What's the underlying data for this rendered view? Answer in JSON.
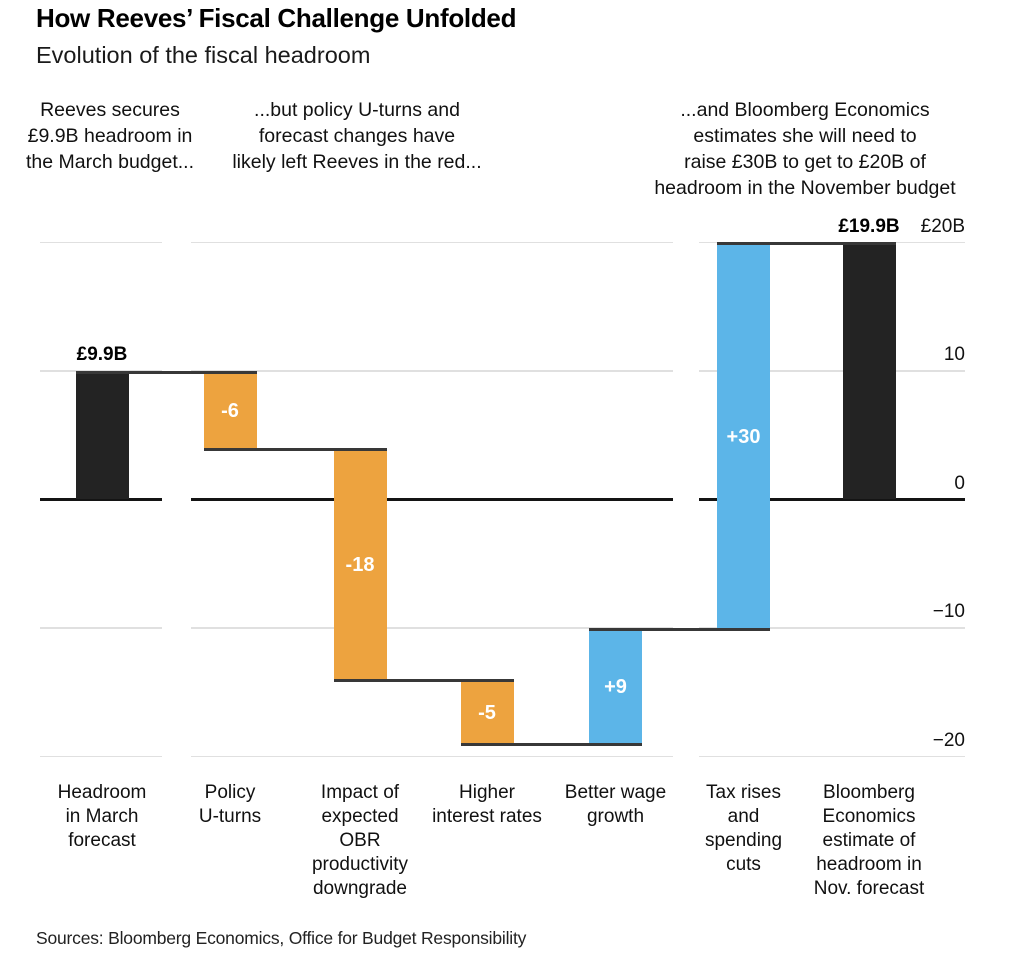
{
  "header": {
    "title": "How Reeves’ Fiscal Challenge Unfolded",
    "subtitle": "Evolution of the fiscal headroom"
  },
  "annotations": [
    {
      "text": "Reeves secures\n£9.9B headroom in\nthe March budget..."
    },
    {
      "text": "...but policy U-turns and\nforecast changes have\nlikely left Reeves in the red..."
    },
    {
      "text": "...and Bloomberg Economics\nestimates she will need to\nraise £30B to get to £20B of\nheadroom in the November budget"
    }
  ],
  "chart_data": {
    "type": "bar",
    "subtype": "waterfall",
    "title": "How Reeves’ Fiscal Challenge Unfolded",
    "subtitle": "Evolution of the fiscal headroom",
    "unit": "£B",
    "ylim": [
      -20,
      20
    ],
    "grid": "horizontal",
    "legend": "none",
    "yticks": [
      {
        "value": 20,
        "label": "£20B"
      },
      {
        "value": 10,
        "label": "10"
      },
      {
        "value": 0,
        "label": "0"
      },
      {
        "value": -10,
        "label": "−10"
      },
      {
        "value": -20,
        "label": "−20"
      }
    ],
    "bars": [
      {
        "category": "Headroom\nin March\nforecast",
        "role": "total",
        "start": 0,
        "end": 9.9,
        "change": 9.9,
        "color_key": "black",
        "bar_label": "£9.9B",
        "bar_label_pos": "above",
        "group": 1
      },
      {
        "category": "Policy\nU-turns",
        "role": "decrease",
        "start": 9.9,
        "end": 3.9,
        "change": -6,
        "color_key": "orange",
        "bar_label": "-6",
        "bar_label_pos": "inside",
        "group": 2
      },
      {
        "category": "Impact of\nexpected\nOBR\nproductivity\ndowngrade",
        "role": "decrease",
        "start": 3.9,
        "end": -14.1,
        "change": -18,
        "color_key": "orange",
        "bar_label": "-18",
        "bar_label_pos": "inside",
        "group": 2
      },
      {
        "category": "Higher\ninterest rates",
        "role": "decrease",
        "start": -14.1,
        "end": -19.1,
        "change": -5,
        "color_key": "orange",
        "bar_label": "-5",
        "bar_label_pos": "inside",
        "group": 2
      },
      {
        "category": "Better wage\ngrowth",
        "role": "increase",
        "start": -19.1,
        "end": -10.1,
        "change": 9,
        "color_key": "blue",
        "bar_label": "+9",
        "bar_label_pos": "inside",
        "group": 2
      },
      {
        "category": "Tax rises\nand\nspending\ncuts",
        "role": "increase",
        "start": -10.1,
        "end": 19.9,
        "change": 30,
        "color_key": "blue",
        "bar_label": "+30",
        "bar_label_pos": "inside",
        "group": 3
      },
      {
        "category": "Bloomberg\nEconomics\nestimate of\nheadroom in\nNov. forecast",
        "role": "total",
        "start": 0,
        "end": 19.9,
        "change": 19.9,
        "color_key": "black",
        "bar_label": "£19.9B",
        "bar_label_pos": "above",
        "group": 3
      }
    ],
    "colors": {
      "black": "#232323",
      "orange": "#eda33f",
      "blue": "#5cb5e8",
      "gridline": "#e0e0e0",
      "zero_line": "#141414",
      "connector": "#383838"
    }
  },
  "source": "Sources: Bloomberg Economics, Office for Budget Responsibility"
}
